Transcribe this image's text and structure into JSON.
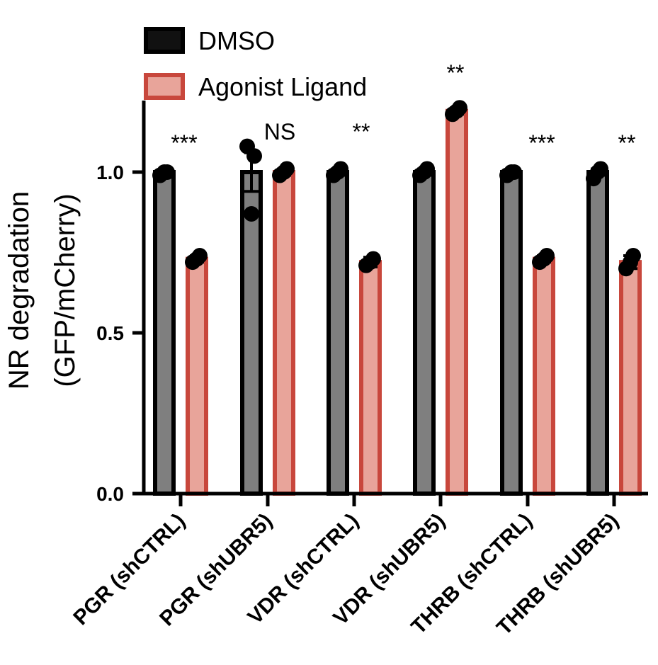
{
  "chart_data": {
    "type": "bar",
    "title": "",
    "xlabel": "",
    "ylabel_lines": [
      "NR degradation",
      "(GFP/mCherry)"
    ],
    "ylim": [
      0,
      1.2
    ],
    "yticks": [
      0.0,
      0.5,
      1.0
    ],
    "ytick_labels": [
      "0.0",
      "0.5",
      "1.0"
    ],
    "categories": [
      "PGR (shCTRL)",
      "PGR (shUBR5)",
      "VDR (shCTRL)",
      "VDR (shUBR5)",
      "THRB (shCTRL)",
      "THRB (shUBR5)"
    ],
    "series": [
      {
        "name": "DMSO",
        "color": "#7f7f7f",
        "edge_color": "#000000",
        "values": [
          1.0,
          1.0,
          1.0,
          1.0,
          1.0,
          1.0
        ],
        "errors": [
          0.005,
          0.06,
          0.01,
          0.01,
          0.005,
          0.01
        ],
        "points": [
          [
            0.99,
            1.0,
            1.0
          ],
          [
            1.08,
            1.05,
            0.87
          ],
          [
            0.99,
            1.01,
            1.0
          ],
          [
            0.99,
            1.01,
            1.0
          ],
          [
            0.99,
            1.0,
            1.0
          ],
          [
            0.98,
            1.01,
            1.0
          ]
        ]
      },
      {
        "name": "Agonist Ligand",
        "color": "#e8a49a",
        "edge_color": "#c8473c",
        "values": [
          0.73,
          1.0,
          0.72,
          1.19,
          0.73,
          0.72
        ],
        "errors": [
          0.01,
          0.01,
          0.015,
          0.01,
          0.01,
          0.02
        ],
        "points": [
          [
            0.72,
            0.74,
            0.73
          ],
          [
            0.99,
            1.01,
            1.0
          ],
          [
            0.71,
            0.73,
            0.72
          ],
          [
            1.18,
            1.2,
            1.19
          ],
          [
            0.72,
            0.74,
            0.73
          ],
          [
            0.7,
            0.74,
            0.72
          ]
        ]
      }
    ],
    "significance": [
      "***",
      "NS",
      "**",
      "**",
      "***",
      "**"
    ],
    "legend_position": "top-left"
  }
}
